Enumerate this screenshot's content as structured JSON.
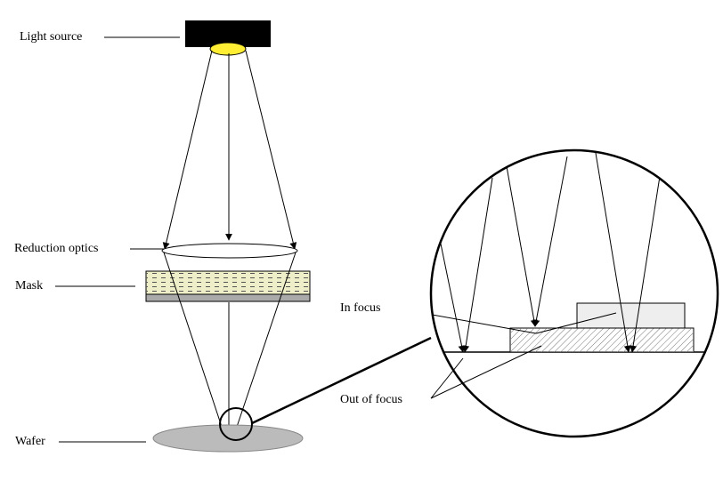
{
  "labels": {
    "light_source": "Light source",
    "reduction_optics": "Reduction optics",
    "mask": "Mask",
    "wafer": "Wafer",
    "in_focus": "In focus",
    "out_of_focus": "Out of focus"
  },
  "colors": {
    "light_source_body": "#000000",
    "light_bulb": "#ffee33",
    "mask_fill": "#eeeec8",
    "mask_base": "#aaaaaa",
    "wafer_fill": "#bbbbbb",
    "step_fill": "#eeeeee"
  }
}
